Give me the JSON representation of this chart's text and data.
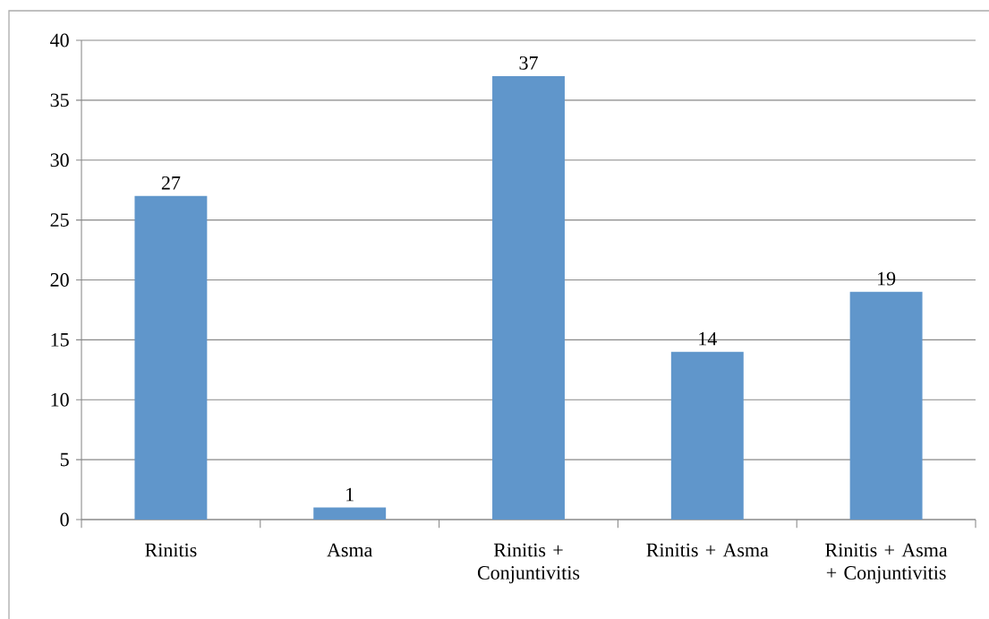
{
  "chart_data": {
    "type": "bar",
    "categories": [
      "Rinitis",
      "Asma",
      "Rinitis + Conjuntivitis",
      "Rinitis + Asma",
      "Rinitis + Asma + Conjuntivitis"
    ],
    "values": [
      27,
      1,
      37,
      14,
      19
    ],
    "color": "#6096cb",
    "ylim": [
      0,
      40
    ],
    "yticks": [
      0,
      5,
      10,
      15,
      20,
      25,
      30,
      35,
      40
    ],
    "grid": "y",
    "data_labels": true
  }
}
